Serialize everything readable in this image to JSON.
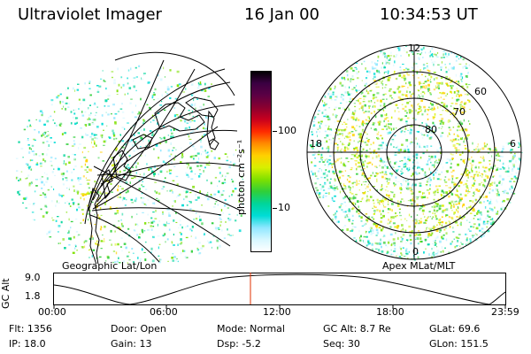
{
  "header": {
    "title": "Ultraviolet Imager",
    "date": "16 Jan 00",
    "time": "10:34:53 UT"
  },
  "colorbar": {
    "label": "photon cm⁻²s⁻¹",
    "ticks": [
      "100",
      "10"
    ],
    "colors": [
      "#000000",
      "#3b0042",
      "#5c0044",
      "#8a0030",
      "#c8001e",
      "#ff2a00",
      "#ff8a00",
      "#ffd000",
      "#d8f000",
      "#7ee000",
      "#2fcf3a",
      "#00d59a",
      "#00dcd6",
      "#8fe7ff",
      "#d6f7ff",
      "#ffffff"
    ]
  },
  "left_panel": {
    "label": "Geographic Lat/Lon"
  },
  "right_panel": {
    "label": "Apex MLat/MLT",
    "mlt_labels": {
      "top": "12",
      "left": "18",
      "right": "6",
      "bottom": "0"
    },
    "lat_labels": [
      "60",
      "70",
      "80"
    ]
  },
  "timeline": {
    "axis_label": "GC Alt",
    "y_labels": [
      "9.0",
      "1.8"
    ],
    "ticks": [
      "00:00",
      "06:00",
      "12:00",
      "18:00",
      "23:59"
    ],
    "marker_color": "#e03000"
  },
  "footer": {
    "flt": "Flt: 1356",
    "ip": "IP: 18.0",
    "door": "Door: Open",
    "gain": "Gain: 13",
    "mode": "Mode: Normal",
    "dsp": "Dsp:    -5.2",
    "gcalt": "GC Alt: 8.7 Re",
    "seq": "Seq: 30",
    "glat": "GLat:   69.6",
    "glon": "GLon: 151.5"
  }
}
